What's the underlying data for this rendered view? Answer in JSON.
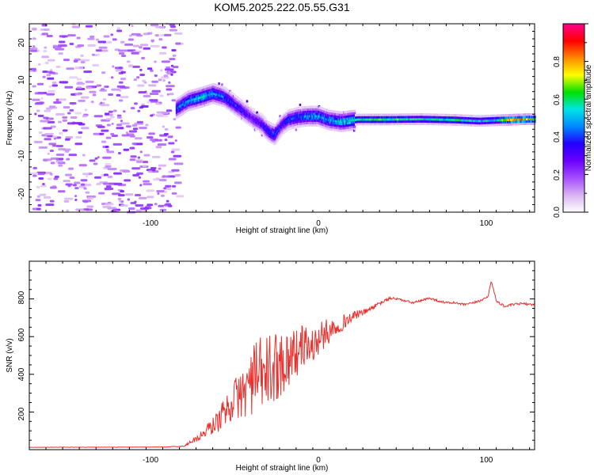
{
  "title": "KOM5.2025.222.05.55.G31",
  "colors": {
    "snr_line": "#e8322f",
    "colormap": [
      "#ffffff",
      "#d9b3f2",
      "#a64dff",
      "#6a00ff",
      "#2200ff",
      "#0088ff",
      "#00e5e5",
      "#00e000",
      "#ffff00",
      "#ff8800",
      "#ff0000",
      "#ff0090"
    ]
  },
  "chart_data": [
    {
      "id": "spectrogram",
      "type": "heatmap",
      "xlabel": "Height of straight line (km)",
      "ylabel": "Frequency (Hz)",
      "xlim": [
        -175,
        128
      ],
      "ylim": [
        -25,
        25
      ],
      "xticks": [
        "-100",
        "0",
        "100"
      ],
      "yticks": [
        "-20",
        "-10",
        "0",
        "10",
        "20"
      ],
      "colorbar": {
        "label": "Normalized spectral amplitude",
        "range": [
          0,
          1
        ],
        "ticks": [
          "0.0",
          "0.2",
          "0.4",
          "0.6",
          "0.8"
        ]
      },
      "noise_region": {
        "x_range": [
          -175,
          -87
        ],
        "freq_range": [
          -25,
          25
        ],
        "amplitude": 0.2
      },
      "ridge": {
        "description": "Dominant Doppler frequency track versus height",
        "x": [
          -87,
          -80,
          -72,
          -65,
          -58,
          -52,
          -46,
          -40,
          -36,
          -32,
          -28,
          -24,
          -20,
          -14,
          -8,
          -2,
          4,
          12,
          22,
          40,
          60,
          80,
          95,
          105,
          112,
          118,
          124,
          128
        ],
        "freq": [
          2.5,
          4.5,
          5.5,
          6.5,
          5.5,
          3.5,
          1.5,
          -0.5,
          -1.5,
          -3.5,
          -4.5,
          -2.0,
          -0.5,
          0.2,
          0.5,
          0.5,
          -0.5,
          -1.0,
          -0.4,
          -0.4,
          -0.3,
          -0.5,
          -0.8,
          -0.6,
          -0.5,
          -0.4,
          -0.3,
          -0.3
        ],
        "amplitude": [
          0.45,
          0.5,
          0.55,
          0.5,
          0.45,
          0.4,
          0.35,
          0.3,
          0.35,
          0.4,
          0.45,
          0.35,
          0.4,
          0.45,
          0.5,
          0.5,
          0.5,
          0.55,
          0.6,
          0.65,
          0.6,
          0.62,
          0.55,
          0.6,
          0.8,
          0.85,
          0.8,
          0.75
        ]
      }
    },
    {
      "id": "snr",
      "type": "line",
      "xlabel": "Height of straight line (km)",
      "ylabel": "SNR (v/v)",
      "xlim": [
        -175,
        128
      ],
      "ylim": [
        0,
        1000
      ],
      "xticks": [
        "-100",
        "0",
        "100"
      ],
      "yticks": [
        "200",
        "400",
        "600",
        "800"
      ],
      "series": [
        {
          "name": "SNR",
          "x": [
            -175,
            -150,
            -120,
            -95,
            -82,
            -78,
            -74,
            -70,
            -66,
            -62,
            -58,
            -54,
            -50,
            -46,
            -42,
            -38,
            -34,
            -30,
            -26,
            -22,
            -18,
            -14,
            -10,
            -6,
            -2,
            2,
            6,
            10,
            14,
            18,
            22,
            26,
            30,
            34,
            38,
            42,
            46,
            50,
            55,
            60,
            65,
            70,
            75,
            80,
            85,
            90,
            95,
            100,
            102,
            105,
            110,
            115,
            120,
            128
          ],
          "y": [
            12,
            13,
            13,
            14,
            18,
            45,
            60,
            90,
            120,
            150,
            200,
            250,
            280,
            310,
            360,
            390,
            400,
            420,
            450,
            470,
            500,
            520,
            560,
            540,
            580,
            610,
            640,
            660,
            680,
            700,
            720,
            730,
            750,
            770,
            790,
            805,
            800,
            790,
            780,
            790,
            805,
            790,
            780,
            780,
            770,
            775,
            790,
            810,
            900,
            790,
            760,
            770,
            775,
            770
          ],
          "noise": [
            1,
            1,
            1,
            1,
            3,
            12,
            20,
            30,
            45,
            60,
            80,
            100,
            120,
            150,
            180,
            200,
            210,
            200,
            180,
            170,
            150,
            130,
            110,
            100,
            90,
            80,
            60,
            50,
            40,
            30,
            20,
            15,
            12,
            10,
            8,
            8,
            6,
            6,
            6,
            6,
            6,
            6,
            6,
            6,
            6,
            6,
            6,
            6,
            6,
            6,
            6,
            6,
            6,
            6
          ]
        }
      ]
    }
  ]
}
